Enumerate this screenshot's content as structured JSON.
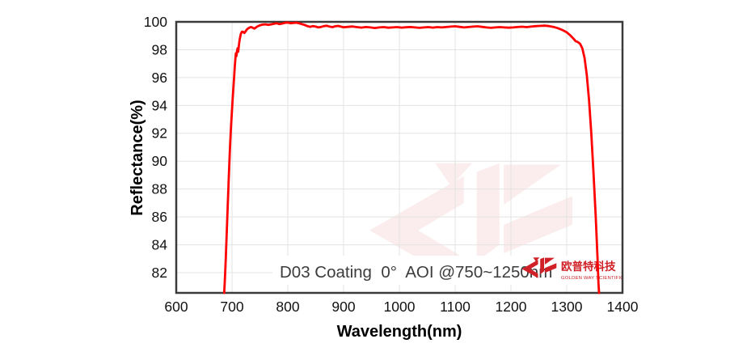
{
  "chart_data": {
    "type": "line",
    "annotation": "D03 Coating  0°  AOI @750~1250nm",
    "xlabel": "Wavelength(nm)",
    "ylabel": "Reflectance(%)",
    "xlim": [
      600,
      1400
    ],
    "ylim": [
      80.55,
      100
    ],
    "xticks": [
      600,
      700,
      800,
      900,
      1000,
      1100,
      1200,
      1300,
      1400
    ],
    "yticks": [
      82,
      84,
      86,
      88,
      90,
      92,
      94,
      96,
      98,
      100
    ],
    "grid": true,
    "grid_color": "#e3e3e3",
    "border_color": "#3b3b3b",
    "line_color": "#ff0000",
    "series": [
      {
        "name": "D03 coating reflectance, 0° AOI",
        "points": [
          [
            686,
            80.55
          ],
          [
            687,
            81.3
          ],
          [
            688,
            82.2
          ],
          [
            689,
            83.2
          ],
          [
            690,
            84.3
          ],
          [
            691,
            85.4
          ],
          [
            692,
            86.5
          ],
          [
            693,
            87.6
          ],
          [
            694,
            88.7
          ],
          [
            695,
            89.7
          ],
          [
            696,
            90.6
          ],
          [
            697,
            91.5
          ],
          [
            698,
            92.3
          ],
          [
            699,
            93.0
          ],
          [
            700,
            93.7
          ],
          [
            701,
            94.4
          ],
          [
            702,
            95.0
          ],
          [
            703,
            95.6
          ],
          [
            704,
            96.2
          ],
          [
            705,
            96.8
          ],
          [
            706,
            97.3
          ],
          [
            707,
            97.75
          ],
          [
            708,
            97.55
          ],
          [
            709,
            97.9
          ],
          [
            710,
            98.1
          ],
          [
            711,
            97.85
          ],
          [
            712,
            98.2
          ],
          [
            713,
            98.55
          ],
          [
            714,
            98.8
          ],
          [
            715,
            99.0
          ],
          [
            716,
            99.15
          ],
          [
            718,
            99.3
          ],
          [
            720,
            99.28
          ],
          [
            722,
            99.2
          ],
          [
            724,
            99.3
          ],
          [
            726,
            99.42
          ],
          [
            728,
            99.5
          ],
          [
            731,
            99.58
          ],
          [
            734,
            99.63
          ],
          [
            737,
            99.58
          ],
          [
            740,
            99.52
          ],
          [
            743,
            99.6
          ],
          [
            746,
            99.68
          ],
          [
            750,
            99.75
          ],
          [
            755,
            99.8
          ],
          [
            760,
            99.82
          ],
          [
            765,
            99.78
          ],
          [
            770,
            99.82
          ],
          [
            775,
            99.86
          ],
          [
            780,
            99.9
          ],
          [
            785,
            99.84
          ],
          [
            790,
            99.88
          ],
          [
            795,
            99.93
          ],
          [
            800,
            99.95
          ],
          [
            805,
            99.9
          ],
          [
            810,
            99.92
          ],
          [
            815,
            99.94
          ],
          [
            820,
            99.9
          ],
          [
            825,
            99.84
          ],
          [
            830,
            99.78
          ],
          [
            835,
            99.7
          ],
          [
            840,
            99.64
          ],
          [
            845,
            99.7
          ],
          [
            850,
            99.66
          ],
          [
            855,
            99.6
          ],
          [
            860,
            99.64
          ],
          [
            865,
            99.7
          ],
          [
            870,
            99.72
          ],
          [
            875,
            99.66
          ],
          [
            880,
            99.62
          ],
          [
            885,
            99.68
          ],
          [
            890,
            99.71
          ],
          [
            895,
            99.66
          ],
          [
            900,
            99.61
          ],
          [
            908,
            99.64
          ],
          [
            916,
            99.67
          ],
          [
            924,
            99.62
          ],
          [
            932,
            99.59
          ],
          [
            940,
            99.63
          ],
          [
            948,
            99.6
          ],
          [
            956,
            99.56
          ],
          [
            964,
            99.6
          ],
          [
            972,
            99.62
          ],
          [
            980,
            99.58
          ],
          [
            988,
            99.6
          ],
          [
            996,
            99.62
          ],
          [
            1004,
            99.59
          ],
          [
            1012,
            99.61
          ],
          [
            1020,
            99.63
          ],
          [
            1028,
            99.6
          ],
          [
            1036,
            99.57
          ],
          [
            1044,
            99.6
          ],
          [
            1052,
            99.62
          ],
          [
            1060,
            99.59
          ],
          [
            1068,
            99.62
          ],
          [
            1076,
            99.6
          ],
          [
            1084,
            99.63
          ],
          [
            1092,
            99.66
          ],
          [
            1100,
            99.68
          ],
          [
            1108,
            99.64
          ],
          [
            1116,
            99.6
          ],
          [
            1124,
            99.63
          ],
          [
            1132,
            99.66
          ],
          [
            1140,
            99.68
          ],
          [
            1148,
            99.64
          ],
          [
            1156,
            99.6
          ],
          [
            1164,
            99.57
          ],
          [
            1172,
            99.6
          ],
          [
            1180,
            99.62
          ],
          [
            1188,
            99.6
          ],
          [
            1196,
            99.58
          ],
          [
            1204,
            99.6
          ],
          [
            1212,
            99.63
          ],
          [
            1220,
            99.65
          ],
          [
            1228,
            99.62
          ],
          [
            1236,
            99.66
          ],
          [
            1244,
            99.69
          ],
          [
            1252,
            99.71
          ],
          [
            1260,
            99.73
          ],
          [
            1268,
            99.7
          ],
          [
            1276,
            99.64
          ],
          [
            1284,
            99.55
          ],
          [
            1292,
            99.42
          ],
          [
            1300,
            99.25
          ],
          [
            1306,
            99.05
          ],
          [
            1312,
            98.8
          ],
          [
            1316,
            98.62
          ],
          [
            1320,
            98.55
          ],
          [
            1324,
            98.42
          ],
          [
            1328,
            98.1
          ],
          [
            1332,
            97.4
          ],
          [
            1336,
            96.2
          ],
          [
            1340,
            94.4
          ],
          [
            1344,
            92.0
          ],
          [
            1348,
            89.2
          ],
          [
            1352,
            86.0
          ],
          [
            1355,
            83.2
          ],
          [
            1357,
            81.2
          ],
          [
            1358,
            80.55
          ]
        ]
      }
    ]
  },
  "branding": {
    "company_cn": "欧普特科技",
    "company_en": "GOLDEN WAY SCIENTIFIC",
    "logo_color": "#cf2127",
    "watermark_opacity": 0.075
  }
}
